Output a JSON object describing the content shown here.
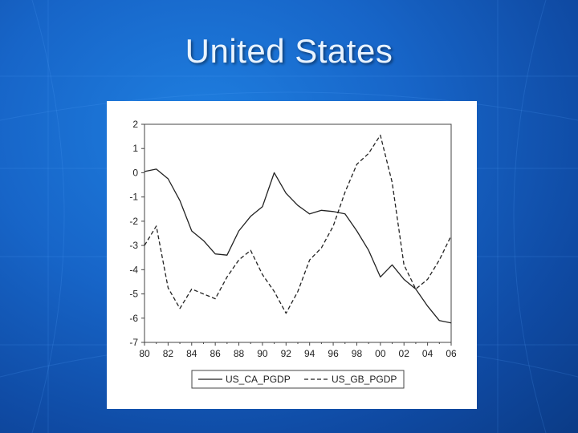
{
  "slide": {
    "title": "United States"
  },
  "colors": {
    "background": "#1765c8",
    "title": "#e8f3ff",
    "series": "#222222"
  },
  "chart_data": {
    "type": "line",
    "title": "",
    "xlabel": "",
    "ylabel": "",
    "x_tick_labels": [
      "80",
      "82",
      "84",
      "86",
      "88",
      "90",
      "92",
      "94",
      "96",
      "98",
      "00",
      "02",
      "04",
      "06"
    ],
    "y_ticks": [
      2,
      1,
      0,
      -1,
      -2,
      -3,
      -4,
      -5,
      -6,
      -7
    ],
    "ylim": [
      -7,
      2
    ],
    "xlim": [
      1980,
      2006
    ],
    "grid": false,
    "legend": "bottom",
    "series": [
      {
        "name": "US_CA_PGDP",
        "line_style": "solid",
        "x": [
          1980,
          1981,
          1982,
          1983,
          1984,
          1985,
          1986,
          1987,
          1988,
          1989,
          1990,
          1991,
          1992,
          1993,
          1994,
          1995,
          1996,
          1997,
          1998,
          1999,
          2000,
          2001,
          2002,
          2003,
          2004,
          2005,
          2006
        ],
        "values": [
          0.05,
          0.15,
          -0.25,
          -1.15,
          -2.4,
          -2.8,
          -3.35,
          -3.4,
          -2.4,
          -1.8,
          -1.4,
          0.0,
          -0.85,
          -1.35,
          -1.7,
          -1.55,
          -1.6,
          -1.7,
          -2.4,
          -3.2,
          -4.3,
          -3.8,
          -4.4,
          -4.8,
          -5.5,
          -6.1,
          -6.2
        ]
      },
      {
        "name": "US_GB_PGDP",
        "line_style": "dashed",
        "x": [
          1980,
          1981,
          1982,
          1983,
          1984,
          1985,
          1986,
          1987,
          1988,
          1989,
          1990,
          1991,
          1992,
          1993,
          1994,
          1995,
          1996,
          1997,
          1998,
          1999,
          2000,
          2001,
          2002,
          2003,
          2004,
          2005,
          2006
        ],
        "values": [
          -3.0,
          -2.2,
          -4.75,
          -5.6,
          -4.8,
          -5.0,
          -5.2,
          -4.3,
          -3.6,
          -3.2,
          -4.2,
          -4.9,
          -5.8,
          -4.9,
          -3.6,
          -3.1,
          -2.2,
          -0.8,
          0.35,
          0.8,
          1.55,
          -0.4,
          -3.8,
          -4.8,
          -4.4,
          -3.6,
          -2.6
        ]
      }
    ]
  }
}
